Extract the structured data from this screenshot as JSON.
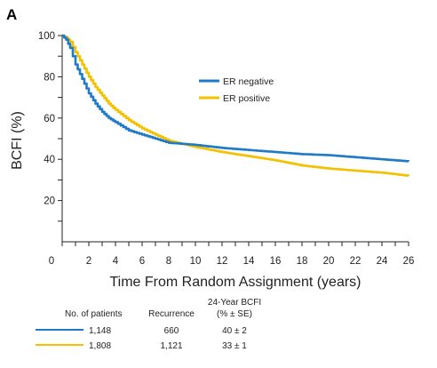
{
  "panel_label": "A",
  "chart_data": {
    "type": "line",
    "xlabel": "Time From Random Assignment (years)",
    "ylabel": "BCFI (%)",
    "xlim": [
      0,
      26
    ],
    "ylim": [
      0,
      100
    ],
    "x_ticks": [
      "0",
      "2",
      "4",
      "6",
      "8",
      "10",
      "12",
      "14",
      "16",
      "18",
      "20",
      "22",
      "24",
      "26"
    ],
    "y_ticks": [
      "20",
      "40",
      "60",
      "80",
      "100"
    ],
    "legend_position": "upper-right",
    "series": [
      {
        "name": "ER negative",
        "color": "#1f7ac7",
        "x": [
          0,
          0.3,
          0.6,
          1,
          1.5,
          2,
          2.5,
          3,
          3.5,
          4,
          5,
          6,
          7,
          8,
          9,
          10,
          12,
          14,
          16,
          18,
          20,
          22,
          24,
          26
        ],
        "y": [
          100,
          98,
          94,
          86,
          79,
          72,
          67,
          63,
          60,
          58,
          54,
          52,
          50,
          48,
          47.5,
          47,
          45.5,
          44.5,
          43.5,
          42.5,
          42,
          41,
          40,
          39
        ]
      },
      {
        "name": "ER positive",
        "color": "#f2c100",
        "x": [
          0,
          0.3,
          0.6,
          1,
          1.5,
          2,
          2.5,
          3,
          3.5,
          4,
          5,
          6,
          7,
          8,
          9,
          10,
          12,
          14,
          16,
          18,
          20,
          22,
          24,
          26
        ],
        "y": [
          100,
          99,
          97,
          92,
          86,
          80,
          75,
          71,
          67,
          64,
          59,
          55,
          52,
          49,
          47.5,
          46,
          43.5,
          41.5,
          39.5,
          37,
          35.5,
          34.5,
          33.5,
          32
        ]
      }
    ]
  },
  "table": {
    "header_top": "24-Year BCFI",
    "columns": [
      "No. of patients",
      "Recurrence",
      "(% ± SE)"
    ],
    "rows": [
      {
        "color": "#1f7ac7",
        "patients": "1,148",
        "recurrence": "660",
        "bcfi": "40 ± 2"
      },
      {
        "color": "#f2c100",
        "patients": "1,808",
        "recurrence": "1,121",
        "bcfi": "33 ± 1"
      }
    ]
  }
}
